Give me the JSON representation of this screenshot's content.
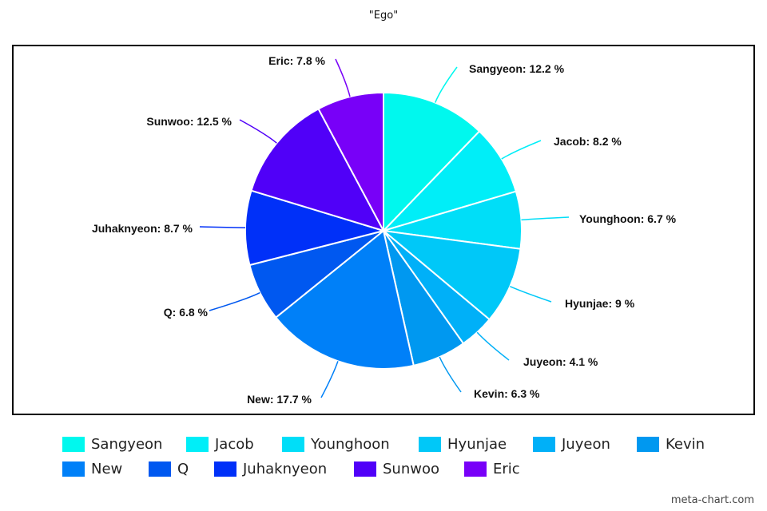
{
  "chart_data": {
    "type": "pie",
    "title": "\"Ego\"",
    "categories": [
      "Sangyeon",
      "Jacob",
      "Younghoon",
      "Hyunjae",
      "Juyeon",
      "Kevin",
      "New",
      "Q",
      "Juhaknyeon",
      "Sunwoo",
      "Eric"
    ],
    "values": [
      12.2,
      8.2,
      6.7,
      9,
      4.1,
      6.3,
      17.7,
      6.8,
      8.7,
      12.5,
      7.8
    ],
    "labels": [
      "Sangyeon: 12.2 %",
      "Jacob: 8.2 %",
      "Younghoon: 6.7 %",
      "Hyunjae: 9 %",
      "Juyeon: 4.1 %",
      "Kevin: 6.3 %",
      "New: 17.7 %",
      "Q: 6.8 %",
      "Juhaknyeon: 8.7 %",
      "Sunwoo: 12.5 %",
      "Eric: 7.8 %"
    ],
    "colors": [
      "#00f8ee",
      "#00eef8",
      "#00def8",
      "#00c8f8",
      "#00b0f8",
      "#0098f0",
      "#0080f8",
      "#0058f0",
      "#0030f8",
      "#5000f8",
      "#7800f8"
    ],
    "legend_position": "bottom"
  },
  "credit": "meta-chart.com"
}
